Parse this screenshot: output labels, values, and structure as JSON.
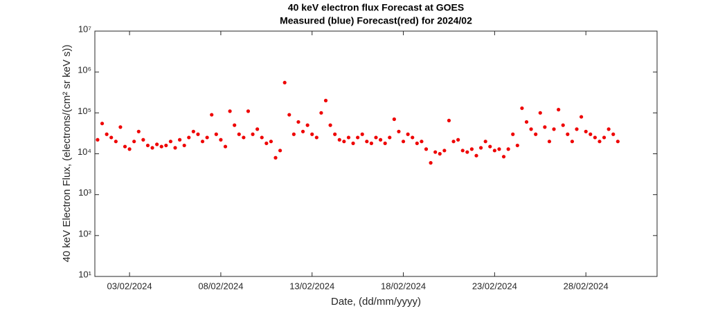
{
  "chart_data": {
    "type": "scatter",
    "title": "40 keV electron flux Forecast at GOES",
    "subtitle": "Measured (blue) Forecast(red) for 2024/02",
    "x_label": "Date, (dd/mm/yyyy)",
    "y_label": "40 keV Electron Flux, (electrons/(cm² sr keV s))",
    "log_y": true,
    "xlim": [
      1.1,
      31.9
    ],
    "ylim": [
      10,
      10000000
    ],
    "xticks": [
      {
        "value": 3,
        "label": "03/02/2024"
      },
      {
        "value": 8,
        "label": "08/02/2024"
      },
      {
        "value": 13,
        "label": "13/02/2024"
      },
      {
        "value": 18,
        "label": "18/02/2024"
      },
      {
        "value": 23,
        "label": "23/02/2024"
      },
      {
        "value": 28,
        "label": "28/02/2024"
      }
    ],
    "yticks": [
      {
        "value": 10,
        "label": "10¹"
      },
      {
        "value": 100,
        "label": "10²"
      },
      {
        "value": 1000,
        "label": "10³"
      },
      {
        "value": 10000,
        "label": "10⁴"
      },
      {
        "value": 100000,
        "label": "10⁵"
      },
      {
        "value": 1000000,
        "label": "10⁶"
      },
      {
        "value": 10000000,
        "label": "10⁷"
      }
    ],
    "series": [
      {
        "color": "#ee0000",
        "x": [
          1.25,
          1.5,
          1.75,
          2,
          2.25,
          2.5,
          2.75,
          3,
          3.25,
          3.5,
          3.75,
          4,
          4.25,
          4.5,
          4.75,
          5,
          5.25,
          5.5,
          5.75,
          6,
          6.25,
          6.5,
          6.75,
          7,
          7.25,
          7.5,
          7.75,
          8,
          8.25,
          8.5,
          8.75,
          9,
          9.25,
          9.5,
          9.75,
          10,
          10.25,
          10.5,
          10.75,
          11,
          11.25,
          11.5,
          11.75,
          12,
          12.25,
          12.5,
          12.75,
          13,
          13.25,
          13.5,
          13.75,
          14,
          14.25,
          14.5,
          14.75,
          15,
          15.25,
          15.5,
          15.75,
          16,
          16.25,
          16.5,
          16.75,
          17,
          17.25,
          17.5,
          17.75,
          18,
          18.25,
          18.5,
          18.75,
          19,
          19.25,
          19.5,
          19.75,
          20,
          20.25,
          20.5,
          20.75,
          21,
          21.25,
          21.5,
          21.75,
          22,
          22.25,
          22.5,
          22.75,
          23,
          23.25,
          23.5,
          23.75,
          24,
          24.25,
          24.5,
          24.75,
          25,
          25.25,
          25.5,
          25.75,
          26,
          26.25,
          26.5,
          26.75,
          27,
          27.25,
          27.5,
          27.75,
          28,
          28.25,
          28.5,
          28.75,
          29,
          29.25,
          29.5,
          29.75
        ],
        "values": [
          22000,
          55000,
          30000,
          25000,
          20000,
          45000,
          15000,
          13000,
          20000,
          35000,
          22000,
          16000,
          14000,
          17000,
          15000,
          16000,
          20000,
          14000,
          22000,
          16000,
          25000,
          35000,
          30000,
          20000,
          25000,
          90000,
          30000,
          22000,
          15000,
          110000,
          50000,
          30000,
          25000,
          110000,
          30000,
          40000,
          25000,
          18000,
          20000,
          8000,
          12000,
          550000,
          90000,
          30000,
          60000,
          35000,
          50000,
          30000,
          25000,
          100000,
          200000,
          50000,
          30000,
          22000,
          20000,
          25000,
          18000,
          25000,
          30000,
          20000,
          18000,
          25000,
          22000,
          18000,
          25000,
          70000,
          35000,
          20000,
          30000,
          25000,
          18000,
          20000,
          13000,
          6000,
          11000,
          10000,
          12000,
          65000,
          20000,
          22000,
          12000,
          11000,
          13000,
          9000,
          14000,
          20000,
          15000,
          12000,
          13000,
          8500,
          13000,
          30000,
          16000,
          130000,
          60000,
          40000,
          30000,
          100000,
          45000,
          20000,
          40000,
          120000,
          50000,
          30000,
          20000,
          40000,
          80000,
          35000,
          30000,
          25000,
          20000,
          25000,
          40000,
          30000,
          20000
        ]
      }
    ]
  }
}
